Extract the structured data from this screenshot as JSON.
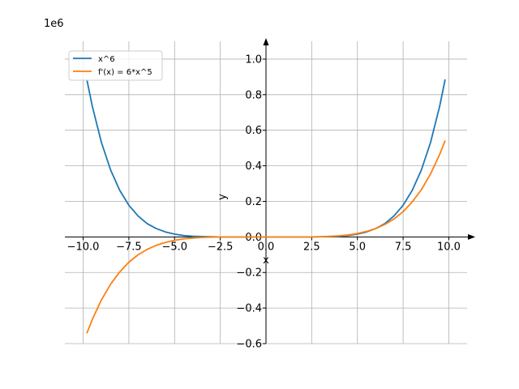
{
  "chart_data": {
    "type": "line",
    "offset_text": "1e6",
    "xlabel": "x",
    "ylabel": "y",
    "xlim": [
      -11,
      11
    ],
    "ylim": [
      -0.6,
      1.1
    ],
    "y_scale_factor": 1000000,
    "grid": true,
    "legend_placement": "top-left",
    "x_ticks": [
      -10.0,
      -7.5,
      -5.0,
      -2.5,
      0.0,
      2.5,
      5.0,
      7.5,
      10.0
    ],
    "x_tick_labels": [
      "−10.0",
      "−7.5",
      "−5.0",
      "−2.5",
      "0.0",
      "2.5",
      "5.0",
      "7.5",
      "10.0"
    ],
    "y_ticks": [
      -0.6,
      -0.4,
      -0.2,
      0.0,
      0.2,
      0.4,
      0.6,
      0.8,
      1.0
    ],
    "y_tick_labels": [
      "−0.6",
      "−0.4",
      "−0.2",
      "0.0",
      "0.2",
      "0.4",
      "0.6",
      "0.8",
      "1.0"
    ],
    "series": [
      {
        "name": "x^6",
        "color": "#1f77b4",
        "x": [
          -9.8,
          -9.5,
          -9.0,
          -8.5,
          -8.0,
          -7.5,
          -7.0,
          -6.5,
          -6.0,
          -5.5,
          -5.0,
          -4.5,
          -4.0,
          -3.5,
          -3.0,
          -2.5,
          -2.0,
          -1.0,
          0.0,
          1.0,
          2.0,
          2.5,
          3.0,
          3.5,
          4.0,
          4.5,
          5.0,
          5.5,
          6.0,
          6.5,
          7.0,
          7.5,
          8.0,
          8.5,
          9.0,
          9.5,
          9.8
        ],
        "y": [
          0.886,
          0.735,
          0.531,
          0.377,
          0.262,
          0.178,
          0.118,
          0.075,
          0.047,
          0.028,
          0.016,
          0.008,
          0.004,
          0.002,
          0.001,
          0.0,
          0.0,
          0.0,
          0.0,
          0.0,
          0.0,
          0.0,
          0.001,
          0.002,
          0.004,
          0.008,
          0.016,
          0.028,
          0.047,
          0.075,
          0.118,
          0.178,
          0.262,
          0.377,
          0.531,
          0.735,
          0.886
        ]
      },
      {
        "name": "f'(x) = 6*x^5",
        "color": "#ff7f0e",
        "x": [
          -9.8,
          -9.5,
          -9.0,
          -8.5,
          -8.0,
          -7.5,
          -7.0,
          -6.5,
          -6.0,
          -5.5,
          -5.0,
          -4.5,
          -4.0,
          -3.5,
          -3.0,
          -2.5,
          -2.0,
          -1.0,
          0.0,
          1.0,
          2.0,
          2.5,
          3.0,
          3.5,
          4.0,
          4.5,
          5.0,
          5.5,
          6.0,
          6.5,
          7.0,
          7.5,
          8.0,
          8.5,
          9.0,
          9.5,
          9.8
        ],
        "y": [
          -0.542,
          -0.464,
          -0.354,
          -0.266,
          -0.197,
          -0.142,
          -0.101,
          -0.07,
          -0.047,
          -0.031,
          -0.019,
          -0.011,
          -0.006,
          -0.003,
          -0.001,
          0.0,
          0.0,
          0.0,
          0.0,
          0.0,
          0.0,
          0.0,
          0.001,
          0.003,
          0.006,
          0.011,
          0.019,
          0.031,
          0.047,
          0.07,
          0.101,
          0.142,
          0.197,
          0.266,
          0.354,
          0.464,
          0.542
        ]
      }
    ]
  }
}
